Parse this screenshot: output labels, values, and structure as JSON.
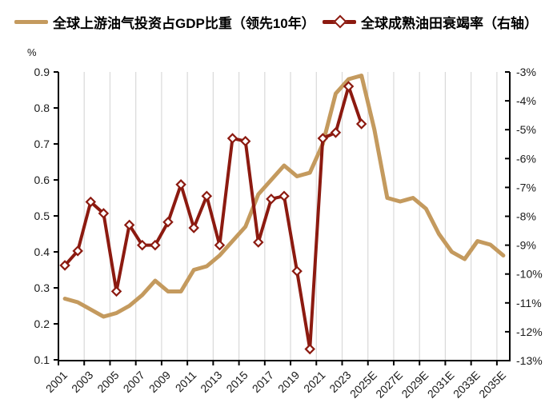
{
  "legend": [
    {
      "label": "全球上游油气投资占GDP比重（领先10年）",
      "color": "#C49A5E",
      "marker": "line"
    },
    {
      "label": "全球成熟油田衰竭率（右轴）",
      "color": "#8C1A10",
      "marker": "line-diamond"
    }
  ],
  "colors": {
    "series_investment": "#C49A5E",
    "series_decline": "#8C1A10",
    "gridline": "#D9D9D9",
    "axis": "#000000",
    "tick_text": "#1a1a1a"
  },
  "chart_data": {
    "type": "line",
    "title": "",
    "legend_position": "top",
    "grid": "vertical-only",
    "x_label_interval": 2,
    "years": [
      2001,
      2002,
      2003,
      2004,
      2005,
      2006,
      2007,
      2008,
      2009,
      2010,
      2011,
      2012,
      2013,
      2014,
      2015,
      2016,
      2017,
      2018,
      2019,
      2020,
      2021,
      2022,
      2023,
      2024,
      2025,
      2026,
      2027,
      2028,
      2029,
      2030,
      2031,
      2032,
      2033,
      2034,
      2035
    ],
    "x_tick_labels": [
      "2001",
      "2003",
      "2005",
      "2007",
      "2009",
      "2011",
      "2013",
      "2015",
      "2017",
      "2019",
      "2021",
      "2023",
      "2025E",
      "2027E",
      "2029E",
      "2031E",
      "2033E",
      "2035E"
    ],
    "left_axis": {
      "label": "%",
      "min": 0.1,
      "max": 0.9,
      "tick_step": 0.1,
      "tick_labels": [
        "0.9",
        "0.8",
        "0.7",
        "0.6",
        "0.5",
        "0.4",
        "0.3",
        "0.2",
        "0.1"
      ]
    },
    "right_axis": {
      "label": "右轴",
      "min": -13,
      "max": -3,
      "tick_step": 1,
      "tick_labels": [
        "-3%",
        "-4%",
        "-5%",
        "-6%",
        "-7%",
        "-8%",
        "-9%",
        "-10%",
        "-11%",
        "-12%",
        "-13%"
      ]
    },
    "series": [
      {
        "name": "全球上游油气投资占GDP比重（领先10年）",
        "axis": "left",
        "color": "#C49A5E",
        "marker": "none",
        "values": [
          0.27,
          0.26,
          0.24,
          0.22,
          0.23,
          0.25,
          0.28,
          0.32,
          0.29,
          0.29,
          0.35,
          0.36,
          0.39,
          0.43,
          0.47,
          0.56,
          0.6,
          0.64,
          0.61,
          0.62,
          0.7,
          0.84,
          0.88,
          0.89,
          0.74,
          0.55,
          0.54,
          0.55,
          0.52,
          0.45,
          0.4,
          0.38,
          0.43,
          0.42,
          0.39
        ]
      },
      {
        "name": "全球成熟油田衰竭率（右轴）",
        "axis": "right",
        "color": "#8C1A10",
        "marker": "diamond",
        "values": [
          -9.7,
          -9.2,
          -7.5,
          -7.9,
          -10.6,
          -8.3,
          -9.0,
          -9.0,
          -8.2,
          -6.9,
          -8.4,
          -7.3,
          -9.0,
          -5.3,
          -5.4,
          -8.9,
          -7.4,
          -7.3,
          -9.9,
          -12.6,
          -5.3,
          -5.1,
          -3.5,
          -4.8
        ]
      }
    ]
  }
}
